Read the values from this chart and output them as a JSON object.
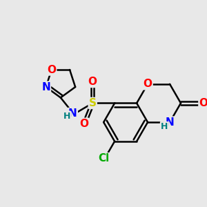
{
  "background_color": "#e8e8e8",
  "bond_color": "#000000",
  "bond_width": 1.8,
  "atom_colors": {
    "O": "#ff0000",
    "N": "#0000ff",
    "S": "#cccc00",
    "Cl": "#00aa00",
    "H_teal": "#008080",
    "C": "#000000"
  },
  "font_size_atom": 11,
  "font_size_small": 10
}
